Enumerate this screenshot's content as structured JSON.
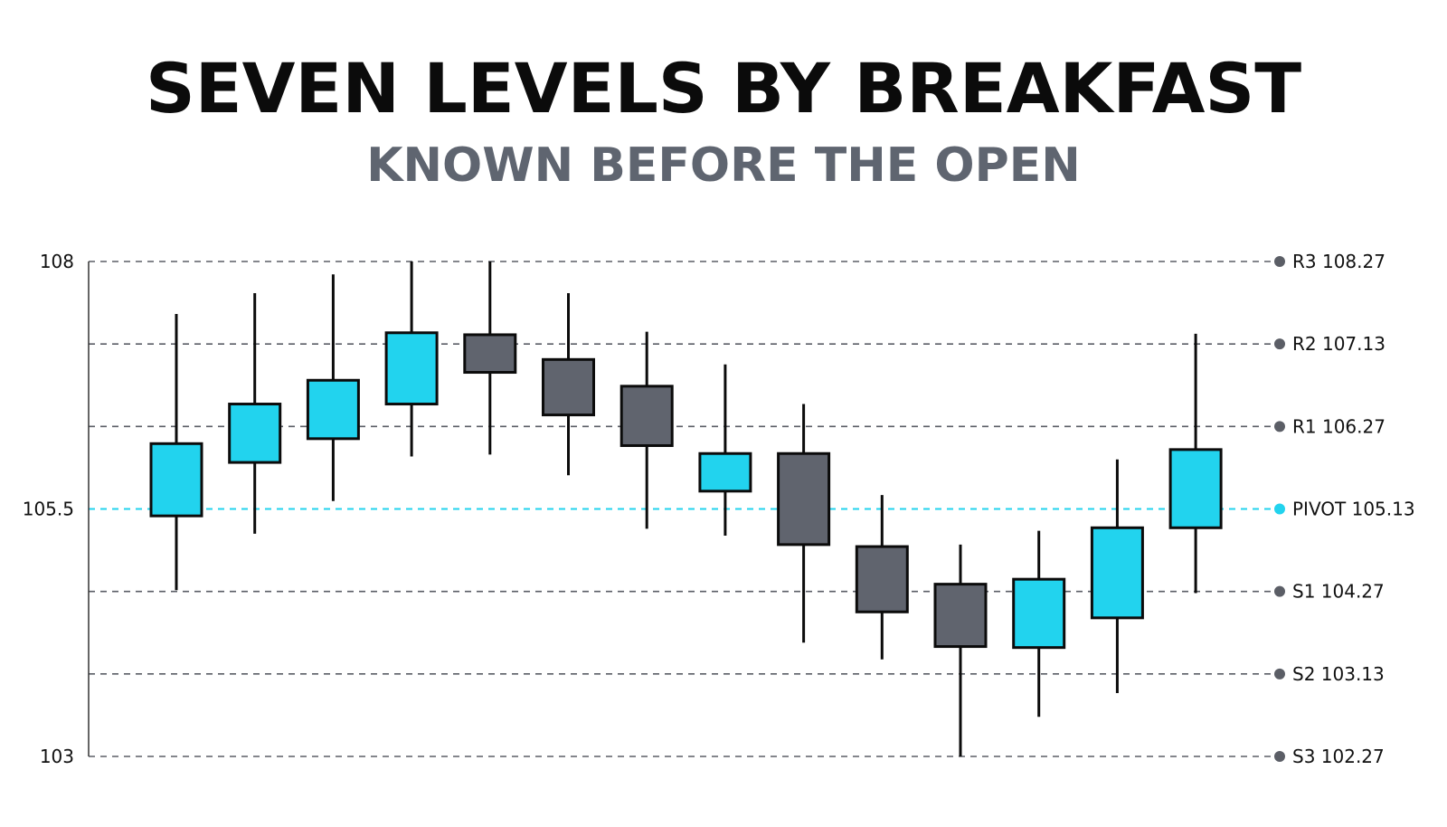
{
  "title": "SEVEN LEVELS BY BREAKFAST",
  "subtitle": "KNOWN BEFORE THE OPEN",
  "colors": {
    "bullish": "#22d3ee",
    "bearish": "#60646e",
    "pivot": "#22d3ee",
    "level": "#5b5e66",
    "wick": "#0b0b0b"
  },
  "chart_data": {
    "type": "candlestick",
    "ylim": [
      103,
      108
    ],
    "yticks": [
      {
        "value": 108,
        "label": "108"
      },
      {
        "value": 105.5,
        "label": "105.5"
      },
      {
        "value": 103,
        "label": "103"
      }
    ],
    "levels": [
      {
        "name": "R3",
        "value": 108.27,
        "label": "R3 108.27",
        "pivot": false
      },
      {
        "name": "R2",
        "value": 107.13,
        "label": "R2 107.13",
        "pivot": false
      },
      {
        "name": "R1",
        "value": 106.27,
        "label": "R1 106.27",
        "pivot": false
      },
      {
        "name": "PIVOT",
        "value": 105.13,
        "label": "PIVOT 105.13",
        "pivot": true
      },
      {
        "name": "S1",
        "value": 104.27,
        "label": "S1 104.27",
        "pivot": false
      },
      {
        "name": "S2",
        "value": 103.13,
        "label": "S2 103.13",
        "pivot": false
      },
      {
        "name": "S3",
        "value": 102.27,
        "label": "S3 102.27",
        "pivot": false
      }
    ],
    "candles": [
      {
        "open": 105.43,
        "close": 106.16,
        "high": 107.47,
        "low": 104.68,
        "bullish": true
      },
      {
        "open": 105.97,
        "close": 106.56,
        "high": 107.68,
        "low": 105.25,
        "bullish": true
      },
      {
        "open": 106.21,
        "close": 106.8,
        "high": 107.87,
        "low": 105.58,
        "bullish": true
      },
      {
        "open": 106.56,
        "close": 107.28,
        "high": 108.26,
        "low": 106.03,
        "bullish": true
      },
      {
        "open": 107.26,
        "close": 106.88,
        "high": 108.62,
        "low": 106.05,
        "bullish": false
      },
      {
        "open": 107.01,
        "close": 106.45,
        "high": 107.68,
        "low": 105.84,
        "bullish": false
      },
      {
        "open": 106.74,
        "close": 106.14,
        "high": 107.29,
        "low": 105.3,
        "bullish": false
      },
      {
        "open": 105.68,
        "close": 106.06,
        "high": 106.96,
        "low": 105.23,
        "bullish": true
      },
      {
        "open": 106.06,
        "close": 105.14,
        "high": 106.56,
        "low": 104.15,
        "bullish": false
      },
      {
        "open": 105.12,
        "close": 104.46,
        "high": 105.64,
        "low": 103.98,
        "bullish": false
      },
      {
        "open": 104.74,
        "close": 104.11,
        "high": 105.14,
        "low": 103.0,
        "bullish": false
      },
      {
        "open": 104.1,
        "close": 104.79,
        "high": 105.28,
        "low": 103.4,
        "bullish": true
      },
      {
        "open": 104.4,
        "close": 105.31,
        "high": 106.0,
        "low": 103.64,
        "bullish": true
      },
      {
        "open": 105.31,
        "close": 106.1,
        "high": 107.27,
        "low": 104.65,
        "bullish": true
      }
    ]
  }
}
